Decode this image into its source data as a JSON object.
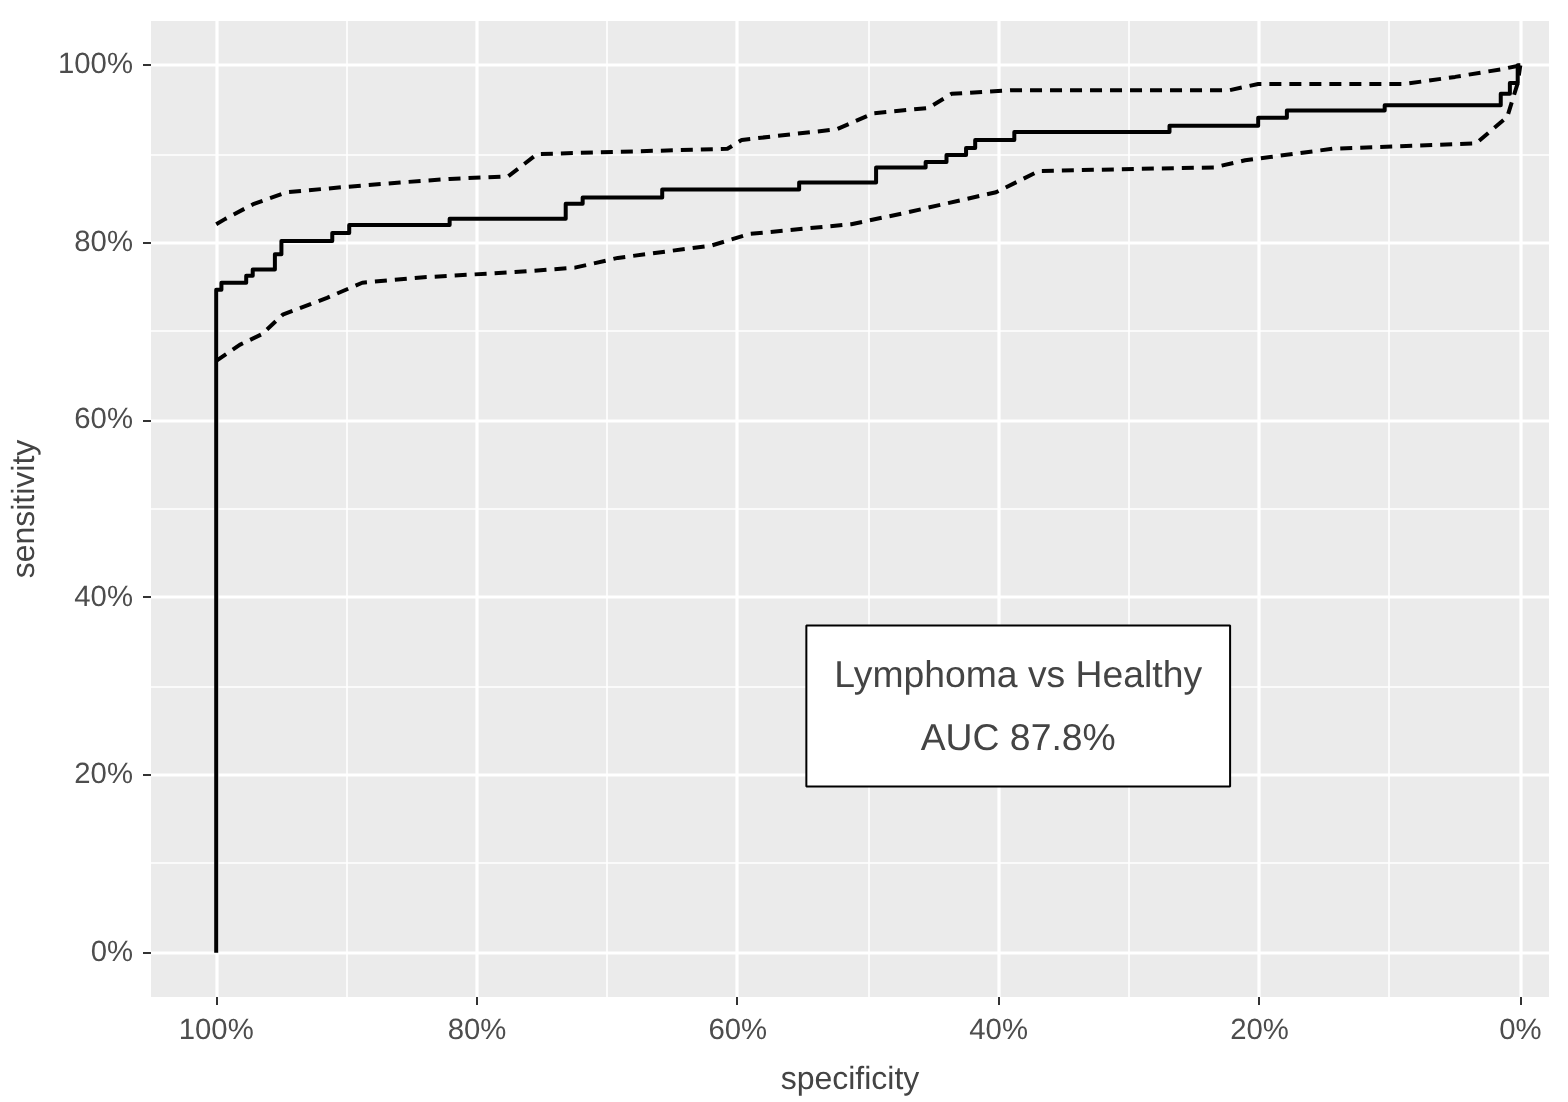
{
  "chart_data": {
    "type": "line",
    "xlabel": "specificity",
    "ylabel": "sensitivity",
    "xlim": [
      105,
      -2.2
    ],
    "ylim": [
      -5,
      105
    ],
    "xticks": [
      {
        "value": 100,
        "label": "100%"
      },
      {
        "value": 80,
        "label": "80%"
      },
      {
        "value": 60,
        "label": "60%"
      },
      {
        "value": 40,
        "label": "40%"
      },
      {
        "value": 20,
        "label": "20%"
      },
      {
        "value": 0,
        "label": "0%"
      }
    ],
    "yticks": [
      {
        "value": 0,
        "label": "0%"
      },
      {
        "value": 20,
        "label": "20%"
      },
      {
        "value": 40,
        "label": "40%"
      },
      {
        "value": 60,
        "label": "60%"
      },
      {
        "value": 80,
        "label": "80%"
      },
      {
        "value": 100,
        "label": "100%"
      }
    ],
    "grid": true,
    "marker": "none",
    "annotations": [
      "Lymphoma vs Healthy\nAUC 87.8%"
    ],
    "series": [
      {
        "type": "step",
        "color": "#000000",
        "line_style": "solid",
        "x": [
          100,
          100,
          99.6,
          97.7,
          97.2,
          95.5,
          95.0,
          91.1,
          89.8,
          82.1,
          73.2,
          71.9,
          65.8,
          55.3,
          49.4,
          45.6,
          44.0,
          42.5,
          41.8,
          38.8,
          26.9,
          20.1,
          17.9,
          10.4,
          1.5,
          0.8,
          0.2,
          0
        ],
        "values": [
          0,
          74.7,
          75.5,
          76.3,
          77.0,
          78.7,
          80.2,
          81.1,
          82.0,
          82.7,
          84.4,
          85.1,
          86.0,
          86.8,
          88.5,
          89.1,
          89.9,
          90.7,
          91.6,
          92.5,
          93.2,
          94.1,
          94.9,
          95.5,
          96.8,
          98.0,
          100,
          100
        ]
      },
      {
        "color": "#000000",
        "line_style": "dashed",
        "x": [
          100,
          99.3,
          97.1,
          94.6,
          90.1,
          85.9,
          82.1,
          77.6,
          75.4,
          60.8,
          59.7,
          52.4,
          49.6,
          45.4,
          43.6,
          39.0,
          22.3,
          20.1,
          8.9,
          5.0,
          1.3,
          0
        ],
        "values": [
          82.1,
          82.7,
          84.4,
          85.7,
          86.3,
          86.8,
          87.2,
          87.5,
          90.0,
          90.6,
          91.6,
          92.8,
          94.6,
          95.2,
          96.8,
          97.2,
          97.2,
          97.9,
          97.9,
          98.7,
          99.6,
          100
        ]
      },
      {
        "color": "#000000",
        "line_style": "dashed",
        "x": [
          100,
          98.2,
          96.5,
          94.9,
          91.5,
          88.8,
          84.3,
          77.1,
          72.5,
          69.2,
          62.0,
          59.1,
          51.3,
          47.4,
          44.1,
          40.2,
          36.9,
          23.5,
          21.1,
          14.4,
          3.4,
          1.0,
          0.2,
          0
        ],
        "values": [
          66.7,
          68.5,
          69.7,
          71.9,
          73.8,
          75.5,
          76.1,
          76.7,
          77.2,
          78.3,
          79.7,
          81.0,
          82.1,
          83.3,
          84.4,
          85.7,
          88.1,
          88.5,
          89.3,
          90.6,
          91.2,
          94.2,
          98.0,
          100
        ]
      }
    ]
  }
}
